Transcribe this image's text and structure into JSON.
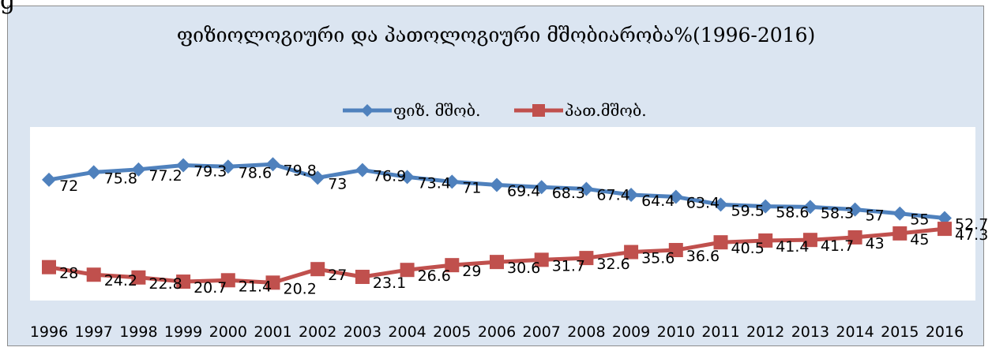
{
  "chart_data": {
    "type": "line",
    "title": "ფიზიოლოგიური და პათოლოგიური მშობიარობა%(1996-2016)",
    "categories": [
      "1996",
      "1997",
      "1998",
      "1999",
      "2000",
      "2001",
      "2002",
      "2003",
      "2004",
      "2005",
      "2006",
      "2007",
      "2008",
      "2009",
      "2010",
      "2011",
      "2012",
      "2013",
      "2014",
      "2015",
      "2016"
    ],
    "series": [
      {
        "name": "ფიზ. მშობ.",
        "color": "#4f81bd",
        "marker": "diamond",
        "values": [
          72,
          75.8,
          77.2,
          79.3,
          78.6,
          79.8,
          73,
          76.9,
          73.4,
          71,
          69.4,
          68.3,
          67.4,
          64.4,
          63.4,
          59.5,
          58.6,
          58.3,
          57,
          55,
          52.7
        ]
      },
      {
        "name": "პათ.მშობ.",
        "color": "#c0504d",
        "marker": "square",
        "values": [
          28,
          24.2,
          22.8,
          20.7,
          21.4,
          20.2,
          27,
          23.1,
          26.6,
          29,
          30.6,
          31.7,
          32.6,
          35.6,
          36.6,
          40.5,
          41.4,
          41.7,
          43,
          45,
          47.3
        ]
      }
    ],
    "legend_position": "top",
    "grid": false,
    "xlabel": "",
    "ylabel": "",
    "ylim": [
      10,
      95
    ]
  }
}
